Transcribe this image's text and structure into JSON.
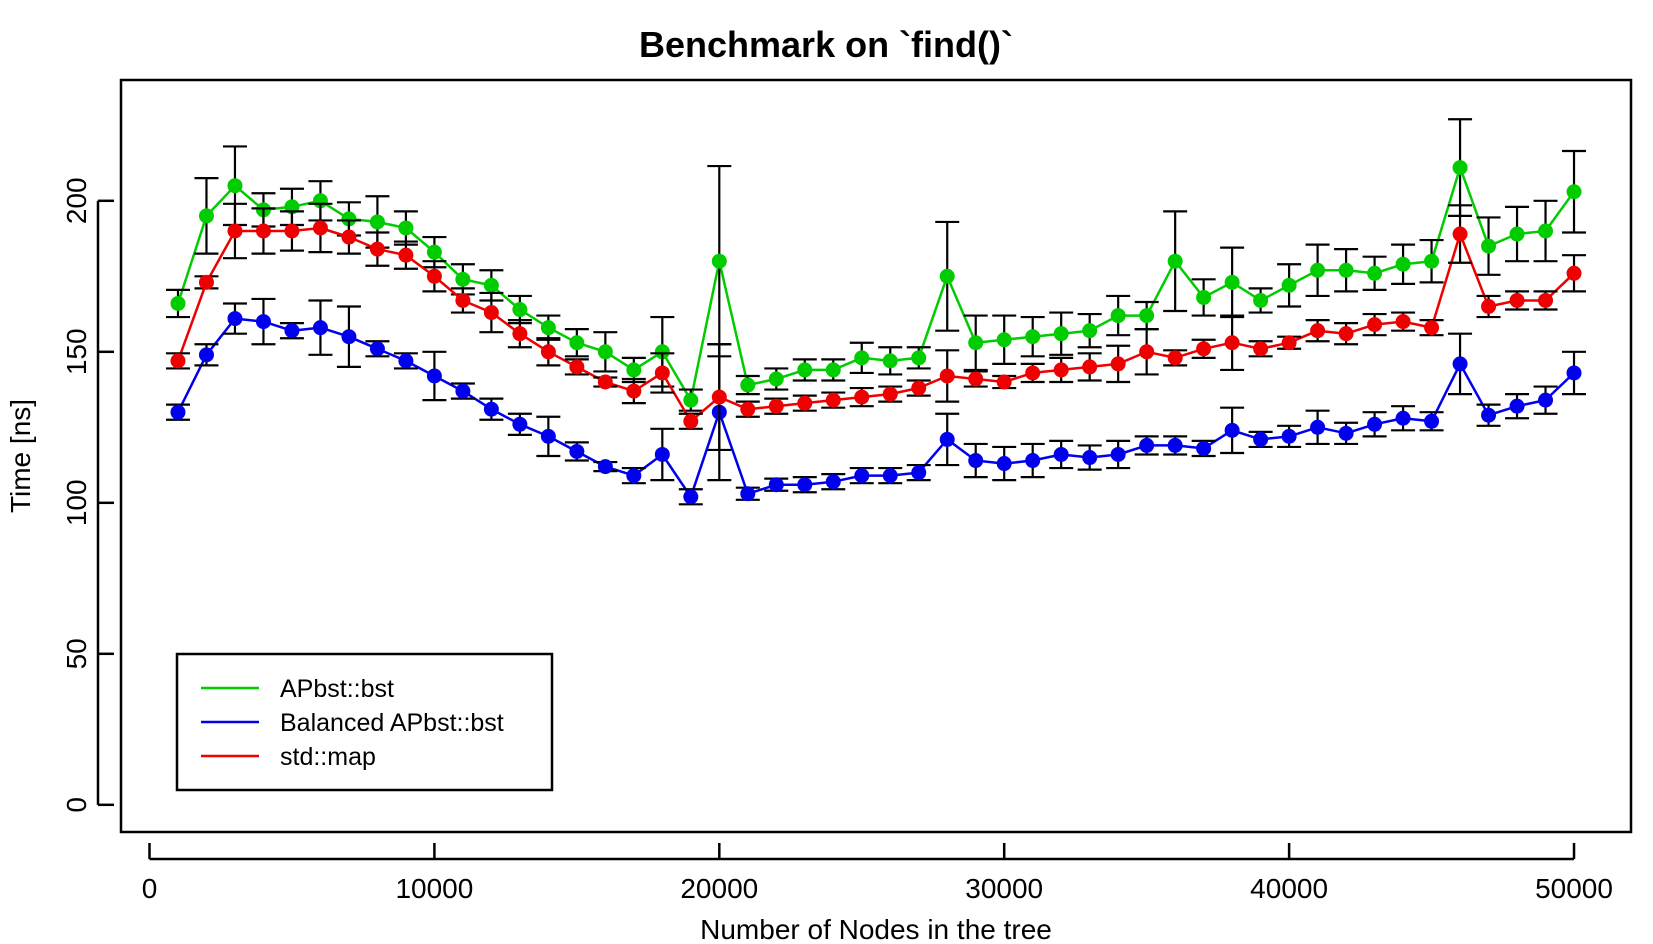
{
  "chart_data": {
    "type": "line",
    "title": "Benchmark on `find()`",
    "xlabel": "Number of Nodes in the tree",
    "ylabel": "Time [ns]",
    "xlim": [
      -1000,
      52000
    ],
    "ylim": [
      -9,
      240
    ],
    "xticks": [
      0,
      10000,
      20000,
      30000,
      40000,
      50000
    ],
    "xtick_labels": [
      "0",
      "10000",
      "20000",
      "30000",
      "40000",
      "50000"
    ],
    "yticks": [
      0,
      50,
      100,
      150,
      200
    ],
    "ytick_labels": [
      "0",
      "50",
      "100",
      "150",
      "200"
    ],
    "legend_position": "bottom-left",
    "x": [
      1000,
      2000,
      3000,
      4000,
      5000,
      6000,
      7000,
      8000,
      9000,
      10000,
      11000,
      12000,
      13000,
      14000,
      15000,
      16000,
      17000,
      18000,
      19000,
      20000,
      21000,
      22000,
      23000,
      24000,
      25000,
      26000,
      27000,
      28000,
      29000,
      30000,
      31000,
      32000,
      33000,
      34000,
      35000,
      36000,
      37000,
      38000,
      39000,
      40000,
      41000,
      42000,
      43000,
      44000,
      45000,
      46000,
      47000,
      48000,
      49000,
      50000
    ],
    "series": [
      {
        "name": "APbst::bst",
        "color": "#00cc00",
        "values": [
          166,
          195,
          205,
          197,
          198,
          200,
          194,
          193,
          191,
          183,
          174,
          172,
          164,
          158,
          153,
          150,
          144,
          150,
          134,
          180,
          139,
          141,
          144,
          144,
          148,
          147,
          148,
          175,
          153,
          154,
          155,
          156,
          157,
          162,
          162,
          180,
          168,
          173,
          167,
          172,
          177,
          177,
          176,
          179,
          180,
          211,
          185,
          189,
          190,
          203
        ],
        "errors": [
          4.5,
          12.5,
          13.0,
          5.5,
          6.0,
          6.5,
          5.5,
          8.5,
          5.5,
          5.0,
          5.0,
          5.0,
          4.5,
          4.0,
          4.5,
          6.5,
          4.0,
          11.5,
          3.5,
          31.5,
          3.0,
          3.5,
          3.5,
          3.5,
          5.0,
          4.5,
          3.5,
          18.0,
          9.0,
          8.0,
          6.5,
          7.0,
          5.5,
          6.5,
          4.5,
          16.5,
          6.0,
          11.5,
          4.0,
          7.0,
          8.5,
          7.0,
          5.5,
          6.5,
          7.0,
          16.0,
          9.5,
          9.0,
          10.0,
          13.5
        ]
      },
      {
        "name": "Balanced APbst::bst",
        "color": "#0000ee",
        "values": [
          130,
          149,
          161,
          160,
          157,
          158,
          155,
          151,
          147,
          142,
          137,
          131,
          126,
          122,
          117,
          112,
          109,
          116,
          102,
          130,
          103,
          106,
          106,
          107,
          109,
          109,
          110,
          121,
          114,
          113,
          114,
          116,
          115,
          116,
          119,
          119,
          118,
          124,
          121,
          122,
          125,
          123,
          126,
          128,
          127,
          146,
          129,
          132,
          134,
          143
        ],
        "errors": [
          2.5,
          3.5,
          5.0,
          7.5,
          2.5,
          9.0,
          10.0,
          2.5,
          2.5,
          8.0,
          2.5,
          3.5,
          3.5,
          6.5,
          3.0,
          1.5,
          2.5,
          8.5,
          2.5,
          22.5,
          2.0,
          2.0,
          2.5,
          2.5,
          2.5,
          2.5,
          2.5,
          8.5,
          5.5,
          5.5,
          5.5,
          4.5,
          4.0,
          4.5,
          3.0,
          3.0,
          2.5,
          7.5,
          2.5,
          3.5,
          5.5,
          3.5,
          4.0,
          4.0,
          3.0,
          10.0,
          3.5,
          4.0,
          4.5,
          7.0
        ]
      },
      {
        "name": "std::map",
        "color": "#ee0000",
        "values": [
          147,
          173,
          190,
          190,
          190,
          191,
          188,
          184,
          182,
          175,
          167,
          163,
          156,
          150,
          145,
          140,
          137,
          143,
          127,
          135,
          131,
          132,
          133,
          134,
          135,
          136,
          138,
          142,
          141,
          140,
          143,
          144,
          145,
          146,
          150,
          148,
          151,
          153,
          151,
          153,
          157,
          156,
          159,
          160,
          158,
          189,
          165,
          167,
          167,
          176
        ],
        "errors": [
          2.5,
          2.0,
          9.0,
          7.5,
          6.5,
          8.0,
          5.5,
          5.5,
          4.5,
          5.0,
          4.0,
          6.5,
          4.5,
          4.5,
          2.5,
          1.5,
          4.0,
          6.5,
          2.5,
          17.5,
          2.5,
          2.5,
          2.5,
          2.5,
          3.0,
          2.5,
          2.5,
          8.5,
          2.5,
          2.0,
          3.0,
          4.0,
          4.5,
          6.0,
          7.5,
          2.5,
          3.0,
          9.0,
          2.5,
          2.0,
          3.5,
          3.5,
          3.5,
          3.0,
          2.5,
          9.5,
          3.5,
          3.0,
          3.0,
          6.0
        ]
      }
    ]
  }
}
